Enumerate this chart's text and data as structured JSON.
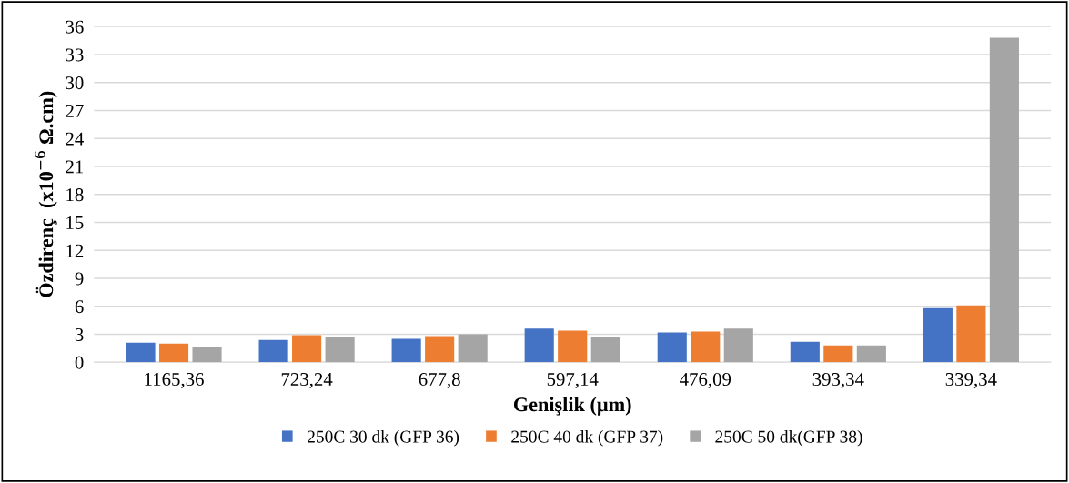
{
  "chart_data": {
    "type": "bar",
    "xlabel": "Genişlik (µm)",
    "ylabel": "Özdirenç  (x10$^{−6}$ Ω.cm)",
    "categories": [
      "1165,36",
      "723,24",
      "677,8",
      "597,14",
      "476,09",
      "393,34",
      "339,34"
    ],
    "series": [
      {
        "name": "250C 30 dk (GFP 36)",
        "color": "#4472c4",
        "values": [
          2.1,
          2.4,
          2.5,
          3.6,
          3.2,
          2.2,
          5.8
        ]
      },
      {
        "name": "250C 40 dk (GFP 37)",
        "color": "#ed7d31",
        "values": [
          2.0,
          2.9,
          2.8,
          3.4,
          3.3,
          1.8,
          6.1
        ]
      },
      {
        "name": "250C 50 dk(GFP 38)",
        "color": "#a5a5a5",
        "values": [
          1.6,
          2.7,
          3.0,
          2.7,
          3.6,
          1.8,
          34.8
        ]
      }
    ],
    "ylim": [
      0,
      36
    ],
    "yticks": [
      0,
      3,
      6,
      9,
      12,
      15,
      18,
      21,
      24,
      27,
      30,
      33,
      36
    ],
    "grid": "y",
    "legend": "bottom"
  }
}
